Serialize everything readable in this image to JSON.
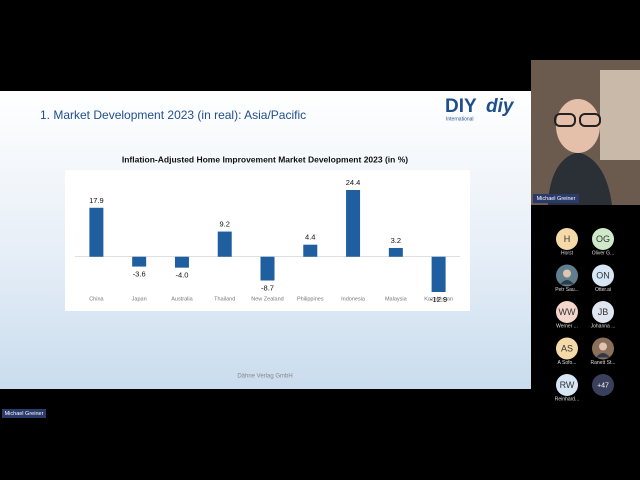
{
  "slide": {
    "title": "1. Market Development 2023 (in real): Asia/Pacific",
    "logo_main": "DIY",
    "logo_sub": "International",
    "logo_alt": "diy",
    "footer": "Dähne Verlag GmbH"
  },
  "chart_data": {
    "type": "bar",
    "title": "Inflation-Adjusted Home Improvement Market Development 2023 (in %)",
    "categories": [
      "China",
      "Japan",
      "Australia",
      "Thailand",
      "New Zealand",
      "Philippines",
      "Indonesia",
      "Malaysia",
      "Kazakhstan"
    ],
    "values": [
      17.9,
      -3.6,
      -4.0,
      9.2,
      -8.7,
      4.4,
      24.4,
      3.2,
      -12.9
    ],
    "value_labels": [
      "17.9",
      "-3.6",
      "-4.0",
      "9.2",
      "-8.7",
      "4.4",
      "24.4",
      "3.2",
      "-12.9"
    ],
    "color": "#1f5fa0"
  },
  "speaker": {
    "name": "Michael Greiner"
  },
  "presenter_tag": "Michael Greiner",
  "participants": [
    {
      "initials": "H",
      "name": "Horst",
      "color": "#f5d9a8"
    },
    {
      "initials": "OG",
      "name": "Oliver G...",
      "color": "#cfe8c9"
    },
    {
      "name": "Petr Sau...",
      "color": "#5f7f8f"
    },
    {
      "initials": "ON",
      "name": "Otter.ai",
      "color": "#d6e6f5"
    },
    {
      "initials": "WW",
      "name": "Werner ...",
      "color": "#f4d6cc"
    },
    {
      "initials": "JB",
      "name": "Johanna ...",
      "color": "#dfe6f0"
    },
    {
      "initials": "AS",
      "name": "A Sofo...",
      "color": "#f5d9a8"
    },
    {
      "name": "Ranett St...",
      "color": "#8a6f5a"
    },
    {
      "initials": "RW",
      "name": "Reinhard...",
      "color": "#d6e6f5"
    }
  ],
  "more_count": "+47"
}
